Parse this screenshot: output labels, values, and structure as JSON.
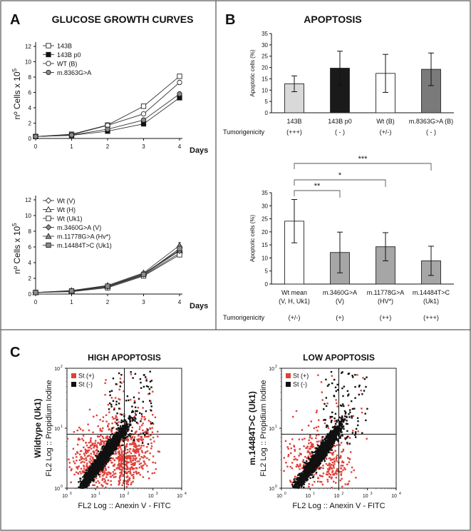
{
  "panels": {
    "A": {
      "letter": "A",
      "title": "GLUCOSE GROWTH CURVES"
    },
    "B": {
      "letter": "B",
      "title": "APOPTOSIS"
    },
    "C": {
      "letter": "C"
    }
  },
  "chart_data": [
    {
      "id": "growth_top",
      "type": "line",
      "ylabel_main": "nº Cells x 10",
      "ylabel_exp": "5",
      "xlabel": "Days",
      "x": [
        0,
        1,
        2,
        3,
        4
      ],
      "xlim": [
        0,
        4
      ],
      "ylim": [
        0,
        12
      ],
      "yticks": [
        0,
        2,
        4,
        6,
        8,
        10,
        12
      ],
      "series": [
        {
          "name": "143B",
          "marker": "square-open",
          "values": [
            0.25,
            0.55,
            1.75,
            4.2,
            8.1
          ]
        },
        {
          "name": "143B p0",
          "marker": "square-filled",
          "values": [
            0.25,
            0.4,
            0.95,
            1.9,
            5.3
          ]
        },
        {
          "name": "WT (B)",
          "marker": "circle-open",
          "values": [
            0.25,
            0.5,
            1.7,
            3.2,
            7.3
          ]
        },
        {
          "name": "m.8363G>A",
          "marker": "circle-gray",
          "values": [
            0.25,
            0.45,
            1.2,
            2.4,
            5.8
          ]
        }
      ]
    },
    {
      "id": "growth_bottom",
      "type": "line",
      "ylabel_main": "nº Cells x 10",
      "ylabel_exp": "5",
      "xlabel": "Days",
      "x": [
        0,
        1,
        2,
        3,
        4
      ],
      "xlim": [
        0,
        4
      ],
      "ylim": [
        0,
        12
      ],
      "yticks": [
        0,
        2,
        4,
        6,
        8,
        10,
        12
      ],
      "series": [
        {
          "name": "Wt (V)",
          "marker": "diamond-open",
          "values": [
            0.2,
            0.35,
            0.9,
            2.4,
            5.2
          ]
        },
        {
          "name": "Wt (H)",
          "marker": "triangle-open",
          "values": [
            0.2,
            0.4,
            1.0,
            2.6,
            5.6
          ]
        },
        {
          "name": "Wt (Uk1)",
          "marker": "square-open",
          "values": [
            0.2,
            0.3,
            0.8,
            2.3,
            5.0
          ]
        },
        {
          "name": "m.3460G>A (V)",
          "marker": "diamond-gray",
          "values": [
            0.2,
            0.35,
            0.95,
            2.5,
            5.5
          ]
        },
        {
          "name": "m.11778G>A (Hv*)",
          "marker": "triangle-gray",
          "values": [
            0.2,
            0.45,
            1.1,
            2.7,
            6.2
          ]
        },
        {
          "name": "m.14484T>C (Uk1)",
          "marker": "square-gray",
          "values": [
            0.2,
            0.4,
            1.0,
            2.5,
            5.8
          ]
        }
      ]
    },
    {
      "id": "apoptosis_top",
      "type": "bar",
      "ylabel": "Apoptotic cells (%)",
      "ylim": [
        0,
        35
      ],
      "yticks": [
        0,
        5,
        10,
        15,
        20,
        25,
        30,
        35
      ],
      "categories": [
        "143B",
        "143B p0",
        "Wt (B)",
        "m.8363G>A (B)"
      ],
      "category_line2": [
        "",
        "",
        "",
        ""
      ],
      "values": [
        12.8,
        19.7,
        17.4,
        19.2
      ],
      "errors": [
        3.5,
        7.5,
        8.4,
        7.2
      ],
      "fills": [
        "#d9d9d9",
        "#1a1a1a",
        "#ffffff",
        "#7a7a7a"
      ],
      "tumorigenicity_label": "Tumorigenicity",
      "tumorigenicity": [
        "(+++)",
        "( - )",
        "(+/-)",
        "( - )"
      ]
    },
    {
      "id": "apoptosis_bottom",
      "type": "bar",
      "ylabel": "Apoptotic cells (%)",
      "ylim": [
        0,
        35
      ],
      "yticks": [
        0,
        5,
        10,
        15,
        20,
        25,
        30,
        35
      ],
      "categories": [
        "Wt mean",
        "m.3460G>A",
        "m.11778G>A",
        "m.14484T>C"
      ],
      "category_line2": [
        "(V, H, Uk1)",
        "(V)",
        "(HV*)",
        "(Uk1)"
      ],
      "values": [
        24.1,
        12.1,
        14.3,
        8.9
      ],
      "errors": [
        8.3,
        7.8,
        5.4,
        5.6
      ],
      "fills": [
        "#ffffff",
        "#a6a6a6",
        "#a6a6a6",
        "#a6a6a6"
      ],
      "significance": [
        "**",
        "*",
        "***"
      ],
      "tumorigenicity_label": "Tumorigenicity",
      "tumorigenicity": [
        "(+/-)",
        "(+)",
        "(++)",
        "(+++)"
      ]
    },
    {
      "id": "flow_high",
      "type": "scatter",
      "title": "HIGH APOPTOSIS",
      "sample_label": "Wildtype (Uk1)",
      "ylabel": "FL2 Log :: Propidium Iodine",
      "xlabel": "FL2 Log :: Anexin V - FITC",
      "xticks": [
        "10",
        "10",
        "10",
        "10",
        "10"
      ],
      "xtick_exps": [
        "0",
        "1",
        "2",
        "3",
        "4"
      ],
      "yticks": [
        "10",
        "10",
        "10"
      ],
      "ytick_exps": [
        "0",
        "1",
        "2"
      ],
      "legend": [
        {
          "name": "St (+)",
          "color": "#e0403a"
        },
        {
          "name": "St (-)",
          "color": "#111111"
        }
      ]
    },
    {
      "id": "flow_low",
      "type": "scatter",
      "title": "LOW APOPTOSIS",
      "sample_label": "m.14484T>C (Uk1)",
      "ylabel": "FL2 Log :: Propidium Iodine",
      "xlabel": "FL2 Log :: Anexin V - FITC",
      "xticks": [
        "10",
        "10",
        "10",
        "10",
        "10"
      ],
      "xtick_exps": [
        "0",
        "1",
        "2",
        "3",
        "4"
      ],
      "yticks": [
        "10",
        "10",
        "10"
      ],
      "ytick_exps": [
        "0",
        "1",
        "2"
      ],
      "legend": [
        {
          "name": "St (+)",
          "color": "#e0403a"
        },
        {
          "name": "St (-)",
          "color": "#111111"
        }
      ]
    }
  ]
}
